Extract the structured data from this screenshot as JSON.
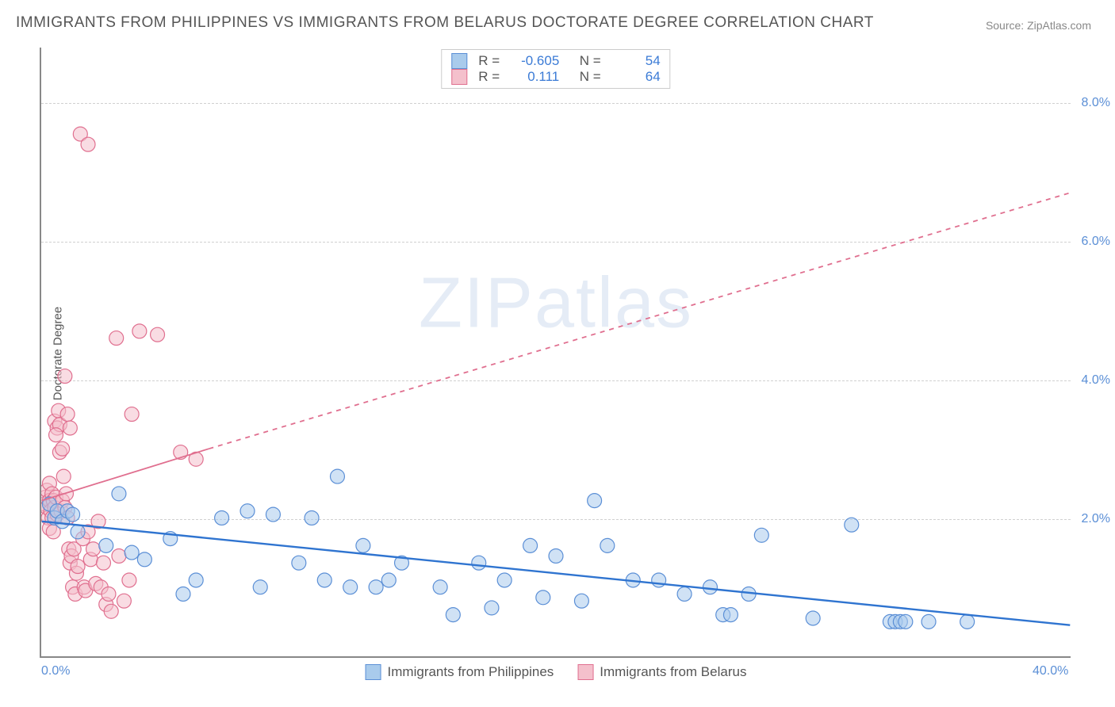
{
  "title": "IMMIGRANTS FROM PHILIPPINES VS IMMIGRANTS FROM BELARUS DOCTORATE DEGREE CORRELATION CHART",
  "source": "Source: ZipAtlas.com",
  "ylabel": "Doctorate Degree",
  "watermark_zip": "ZIP",
  "watermark_atlas": "atlas",
  "chart": {
    "type": "scatter",
    "xlim": [
      0,
      40
    ],
    "ylim": [
      0,
      8.8
    ],
    "xticks": [
      {
        "v": 0,
        "label": "0.0%"
      },
      {
        "v": 40,
        "label": "40.0%"
      }
    ],
    "yticks": [
      {
        "v": 2,
        "label": "2.0%"
      },
      {
        "v": 4,
        "label": "4.0%"
      },
      {
        "v": 6,
        "label": "6.0%"
      },
      {
        "v": 8,
        "label": "8.0%"
      }
    ],
    "grid_color": "#d0d0d0",
    "background_color": "#ffffff",
    "axis_color": "#888888",
    "tick_label_color": "#5b8fd6",
    "marker_radius": 9,
    "marker_opacity": 0.55,
    "marker_stroke_width": 1.2,
    "series": [
      {
        "name": "Immigrants from Philippines",
        "fill": "#a9cbec",
        "stroke": "#5b8fd6",
        "R": "-0.605",
        "N": "54",
        "trend": {
          "solid": {
            "x1": 0,
            "y1": 1.95,
            "x2": 40,
            "y2": 0.45
          },
          "stroke": "#2f74d0",
          "width": 2.4
        },
        "points": [
          [
            0.3,
            2.2
          ],
          [
            0.5,
            2.0
          ],
          [
            0.6,
            2.1
          ],
          [
            0.8,
            1.95
          ],
          [
            1.0,
            2.1
          ],
          [
            1.2,
            2.05
          ],
          [
            1.4,
            1.8
          ],
          [
            2.5,
            1.6
          ],
          [
            3.0,
            2.35
          ],
          [
            3.5,
            1.5
          ],
          [
            4.0,
            1.4
          ],
          [
            5.0,
            1.7
          ],
          [
            5.5,
            0.9
          ],
          [
            6.0,
            1.1
          ],
          [
            7.0,
            2.0
          ],
          [
            8.0,
            2.1
          ],
          [
            8.5,
            1.0
          ],
          [
            9.0,
            2.05
          ],
          [
            10.0,
            1.35
          ],
          [
            10.5,
            2.0
          ],
          [
            11.0,
            1.1
          ],
          [
            11.5,
            2.6
          ],
          [
            12.0,
            1.0
          ],
          [
            12.5,
            1.6
          ],
          [
            13.0,
            1.0
          ],
          [
            13.5,
            1.1
          ],
          [
            14.0,
            1.35
          ],
          [
            15.5,
            1.0
          ],
          [
            16.0,
            0.6
          ],
          [
            17.0,
            1.35
          ],
          [
            17.5,
            0.7
          ],
          [
            18.0,
            1.1
          ],
          [
            19.0,
            1.6
          ],
          [
            19.5,
            0.85
          ],
          [
            20.0,
            1.45
          ],
          [
            21.0,
            0.8
          ],
          [
            21.5,
            2.25
          ],
          [
            22.0,
            1.6
          ],
          [
            23.0,
            1.1
          ],
          [
            24.0,
            1.1
          ],
          [
            25.0,
            0.9
          ],
          [
            26.0,
            1.0
          ],
          [
            26.5,
            0.6
          ],
          [
            26.8,
            0.6
          ],
          [
            27.5,
            0.9
          ],
          [
            28.0,
            1.75
          ],
          [
            30.0,
            0.55
          ],
          [
            31.5,
            1.9
          ],
          [
            33.0,
            0.5
          ],
          [
            33.2,
            0.5
          ],
          [
            33.4,
            0.5
          ],
          [
            33.6,
            0.5
          ],
          [
            34.5,
            0.5
          ],
          [
            36.0,
            0.5
          ]
        ]
      },
      {
        "name": "Immigrants from Belarus",
        "fill": "#f4c0cc",
        "stroke": "#e06f8f",
        "R": "0.111",
        "N": "64",
        "trend": {
          "solid": {
            "x1": 0,
            "y1": 2.25,
            "x2": 6.5,
            "y2": 3.0
          },
          "dashed": {
            "x1": 6.5,
            "y1": 3.0,
            "x2": 40,
            "y2": 6.7
          },
          "stroke": "#e06f8f",
          "width": 1.8
        },
        "points": [
          [
            0.1,
            2.2
          ],
          [
            0.15,
            2.3
          ],
          [
            0.2,
            2.15
          ],
          [
            0.2,
            2.4
          ],
          [
            0.25,
            2.0
          ],
          [
            0.3,
            2.25
          ],
          [
            0.3,
            2.5
          ],
          [
            0.35,
            2.1
          ],
          [
            0.4,
            2.0
          ],
          [
            0.4,
            2.35
          ],
          [
            0.45,
            2.25
          ],
          [
            0.5,
            2.15
          ],
          [
            0.5,
            3.4
          ],
          [
            0.55,
            2.3
          ],
          [
            0.6,
            3.3
          ],
          [
            0.6,
            2.05
          ],
          [
            0.65,
            3.55
          ],
          [
            0.7,
            3.35
          ],
          [
            0.7,
            2.95
          ],
          [
            0.75,
            2.1
          ],
          [
            0.8,
            3.0
          ],
          [
            0.8,
            2.25
          ],
          [
            0.85,
            2.6
          ],
          [
            0.9,
            4.05
          ],
          [
            0.9,
            2.15
          ],
          [
            0.95,
            2.35
          ],
          [
            1.0,
            3.5
          ],
          [
            1.0,
            2.0
          ],
          [
            1.05,
            1.55
          ],
          [
            1.1,
            1.35
          ],
          [
            1.1,
            3.3
          ],
          [
            1.15,
            1.45
          ],
          [
            1.2,
            1.0
          ],
          [
            1.25,
            1.55
          ],
          [
            1.3,
            0.9
          ],
          [
            1.35,
            1.2
          ],
          [
            1.4,
            1.3
          ],
          [
            1.5,
            7.55
          ],
          [
            1.6,
            1.7
          ],
          [
            1.65,
            1.0
          ],
          [
            1.7,
            0.95
          ],
          [
            1.8,
            7.4
          ],
          [
            1.8,
            1.8
          ],
          [
            1.9,
            1.4
          ],
          [
            2.0,
            1.55
          ],
          [
            2.1,
            1.05
          ],
          [
            2.2,
            1.95
          ],
          [
            2.3,
            1.0
          ],
          [
            2.4,
            1.35
          ],
          [
            2.5,
            0.75
          ],
          [
            2.6,
            0.9
          ],
          [
            2.7,
            0.65
          ],
          [
            2.9,
            4.6
          ],
          [
            3.0,
            1.45
          ],
          [
            3.2,
            0.8
          ],
          [
            3.4,
            1.1
          ],
          [
            3.5,
            3.5
          ],
          [
            3.8,
            4.7
          ],
          [
            4.5,
            4.65
          ],
          [
            5.4,
            2.95
          ],
          [
            6.0,
            2.85
          ],
          [
            0.3,
            1.85
          ],
          [
            0.45,
            1.8
          ],
          [
            0.55,
            3.2
          ]
        ]
      }
    ]
  },
  "legend_top_labels": {
    "R": "R =",
    "N": "N ="
  },
  "legend_bottom": [
    {
      "label": "Immigrants from Philippines",
      "fill": "#a9cbec",
      "stroke": "#5b8fd6"
    },
    {
      "label": "Immigrants from Belarus",
      "fill": "#f4c0cc",
      "stroke": "#e06f8f"
    }
  ]
}
